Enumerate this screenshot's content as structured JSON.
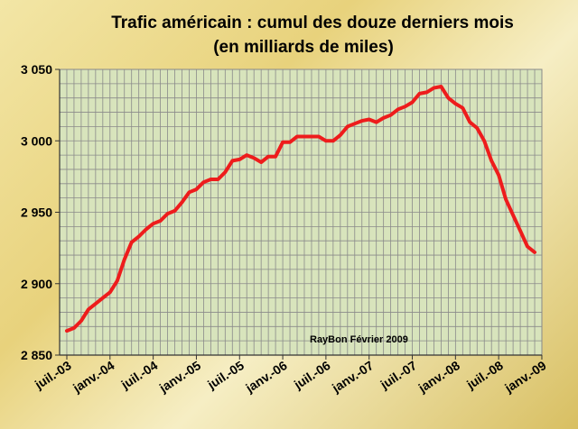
{
  "chart_data": {
    "type": "line",
    "title": "Trafic américain : cumul  des douze derniers mois",
    "subtitle": "(en milliards de miles)",
    "xlabel": "",
    "ylabel": "",
    "ylim": [
      2850,
      3050
    ],
    "yticks": [
      2850,
      2900,
      2950,
      3000,
      3050
    ],
    "ytick_labels": [
      "2 850",
      "2 900",
      "2 950",
      "3 000",
      "3 050"
    ],
    "xtick_labels": [
      "juil.-03",
      "janv.-04",
      "juil.-04",
      "janv.-05",
      "juil.-05",
      "janv.-06",
      "juil.-06",
      "janv.-07",
      "juil.-07",
      "janv.-08",
      "juil.-08",
      "janv.-09"
    ],
    "grid": true,
    "annotation": "RayBon Février 2009",
    "series": [
      {
        "color": "#ee1c1c",
        "x": [
          "2003-07",
          "2003-08",
          "2003-09",
          "2003-10",
          "2003-11",
          "2003-12",
          "2004-01",
          "2004-02",
          "2004-03",
          "2004-04",
          "2004-05",
          "2004-06",
          "2004-07",
          "2004-08",
          "2004-09",
          "2004-10",
          "2004-11",
          "2004-12",
          "2005-01",
          "2005-02",
          "2005-03",
          "2005-04",
          "2005-05",
          "2005-06",
          "2005-07",
          "2005-08",
          "2005-09",
          "2005-10",
          "2005-11",
          "2005-12",
          "2006-01",
          "2006-02",
          "2006-03",
          "2006-04",
          "2006-05",
          "2006-06",
          "2006-07",
          "2006-08",
          "2006-09",
          "2006-10",
          "2006-11",
          "2006-12",
          "2007-01",
          "2007-02",
          "2007-03",
          "2007-04",
          "2007-05",
          "2007-06",
          "2007-07",
          "2007-08",
          "2007-09",
          "2007-10",
          "2007-11",
          "2007-12",
          "2008-01",
          "2008-02",
          "2008-03",
          "2008-04",
          "2008-05",
          "2008-06",
          "2008-07",
          "2008-08",
          "2008-09",
          "2008-10",
          "2008-11",
          "2008-12"
        ],
        "values": [
          2867,
          2869,
          2874,
          2882,
          2886,
          2890,
          2894,
          2902,
          2917,
          2929,
          2933,
          2938,
          2942,
          2944,
          2949,
          2951,
          2957,
          2964,
          2966,
          2971,
          2973,
          2973,
          2978,
          2986,
          2987,
          2990,
          2988,
          2985,
          2989,
          2989,
          2999,
          2999,
          3003,
          3003,
          3003,
          3003,
          3000,
          3000,
          3004,
          3010,
          3012,
          3014,
          3015,
          3013,
          3016,
          3018,
          3022,
          3024,
          3027,
          3033,
          3034,
          3037,
          3038,
          3030,
          3026,
          3023,
          3013,
          3009,
          3000,
          2986,
          2976,
          2959,
          2948,
          2937,
          2926,
          2922
        ]
      }
    ]
  }
}
